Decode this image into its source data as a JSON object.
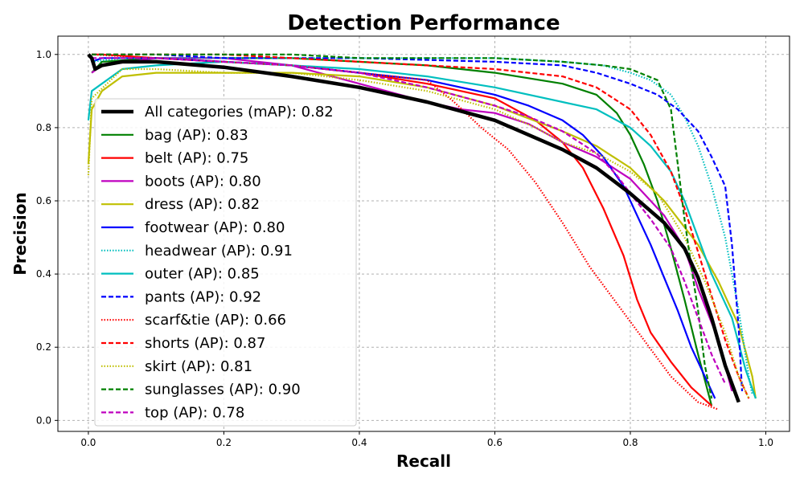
{
  "chart_data": {
    "type": "line",
    "title": "Detection Performance",
    "xlabel": "Recall",
    "ylabel": "Precision",
    "xlim": [
      -0.045,
      1.035
    ],
    "ylim": [
      -0.03,
      1.05
    ],
    "xticks": [
      0.0,
      0.2,
      0.4,
      0.6,
      0.8,
      1.0
    ],
    "xtick_labels": [
      "0.0",
      "0.2",
      "0.4",
      "0.6",
      "0.8",
      "1.0"
    ],
    "yticks": [
      0.0,
      0.2,
      0.4,
      0.6,
      0.8,
      1.0
    ],
    "ytick_labels": [
      "0.0",
      "0.2",
      "0.4",
      "0.6",
      "0.8",
      "1.0"
    ],
    "grid": true,
    "legend_position": "left",
    "series": [
      {
        "name": "All categories",
        "label": "All categories (mAP): 0.82",
        "color": "#000000",
        "style": "solid",
        "width": "thick",
        "x": [
          0.0,
          0.005,
          0.01,
          0.02,
          0.05,
          0.1,
          0.2,
          0.3,
          0.4,
          0.5,
          0.6,
          0.7,
          0.75,
          0.8,
          0.85,
          0.88,
          0.9,
          0.92,
          0.94,
          0.96
        ],
        "y": [
          1.0,
          0.99,
          0.96,
          0.97,
          0.98,
          0.98,
          0.965,
          0.94,
          0.91,
          0.87,
          0.82,
          0.74,
          0.69,
          0.62,
          0.54,
          0.47,
          0.39,
          0.28,
          0.15,
          0.05
        ]
      },
      {
        "name": "bag",
        "label": "bag (AP): 0.83",
        "color": "#008000",
        "style": "solid",
        "width": "normal",
        "x": [
          0.005,
          0.02,
          0.1,
          0.2,
          0.3,
          0.4,
          0.5,
          0.6,
          0.7,
          0.75,
          0.78,
          0.8,
          0.82,
          0.84,
          0.86,
          0.88,
          0.9,
          0.92
        ],
        "y": [
          0.95,
          0.98,
          0.99,
          0.99,
          0.99,
          0.98,
          0.97,
          0.95,
          0.92,
          0.89,
          0.84,
          0.78,
          0.7,
          0.6,
          0.47,
          0.33,
          0.18,
          0.04
        ]
      },
      {
        "name": "belt",
        "label": "belt (AP): 0.75",
        "color": "#ff0000",
        "style": "solid",
        "width": "normal",
        "x": [
          0.005,
          0.02,
          0.1,
          0.2,
          0.3,
          0.4,
          0.5,
          0.6,
          0.66,
          0.7,
          0.73,
          0.76,
          0.79,
          0.81,
          0.83,
          0.86,
          0.89,
          0.92
        ],
        "y": [
          1.0,
          1.0,
          0.99,
          0.98,
          0.97,
          0.95,
          0.92,
          0.88,
          0.82,
          0.76,
          0.69,
          0.58,
          0.45,
          0.33,
          0.24,
          0.16,
          0.09,
          0.04
        ]
      },
      {
        "name": "boots",
        "label": "boots (AP): 0.80",
        "color": "#bf00bf",
        "style": "solid",
        "width": "normal",
        "x": [
          0.005,
          0.02,
          0.1,
          0.2,
          0.3,
          0.4,
          0.5,
          0.55,
          0.6,
          0.65,
          0.7,
          0.75,
          0.8,
          0.85,
          0.88,
          0.9,
          0.93,
          0.95
        ],
        "y": [
          0.95,
          0.97,
          0.99,
          0.99,
          0.97,
          0.92,
          0.87,
          0.85,
          0.84,
          0.81,
          0.76,
          0.72,
          0.66,
          0.56,
          0.47,
          0.36,
          0.22,
          0.08
        ]
      },
      {
        "name": "dress",
        "label": "dress (AP): 0.82",
        "color": "#bfbf00",
        "style": "solid",
        "width": "normal",
        "x": [
          0.0,
          0.005,
          0.02,
          0.05,
          0.1,
          0.2,
          0.3,
          0.4,
          0.5,
          0.6,
          0.7,
          0.75,
          0.8,
          0.85,
          0.9,
          0.93,
          0.96,
          0.98,
          0.985
        ],
        "y": [
          0.7,
          0.85,
          0.9,
          0.94,
          0.95,
          0.95,
          0.95,
          0.94,
          0.91,
          0.86,
          0.79,
          0.75,
          0.69,
          0.6,
          0.48,
          0.38,
          0.26,
          0.12,
          0.06
        ]
      },
      {
        "name": "footwear",
        "label": "footwear (AP): 0.80",
        "color": "#0000ff",
        "style": "solid",
        "width": "normal",
        "x": [
          0.005,
          0.02,
          0.1,
          0.2,
          0.3,
          0.4,
          0.5,
          0.6,
          0.65,
          0.7,
          0.73,
          0.76,
          0.79,
          0.81,
          0.83,
          0.85,
          0.87,
          0.89,
          0.91,
          0.925
        ],
        "y": [
          0.98,
          0.99,
          0.99,
          0.98,
          0.97,
          0.95,
          0.93,
          0.89,
          0.86,
          0.82,
          0.78,
          0.72,
          0.64,
          0.56,
          0.48,
          0.39,
          0.3,
          0.2,
          0.12,
          0.06
        ]
      },
      {
        "name": "headwear",
        "label": "headwear (AP): 0.91",
        "color": "#00bfbf",
        "style": "dotted",
        "width": "normal",
        "x": [
          0.005,
          0.05,
          0.2,
          0.4,
          0.6,
          0.7,
          0.76,
          0.8,
          0.83,
          0.86,
          0.88,
          0.9,
          0.92,
          0.94,
          0.96,
          0.975,
          0.98
        ],
        "y": [
          0.98,
          0.99,
          0.99,
          0.99,
          0.99,
          0.98,
          0.97,
          0.95,
          0.93,
          0.89,
          0.83,
          0.75,
          0.64,
          0.5,
          0.3,
          0.12,
          0.07
        ]
      },
      {
        "name": "outer",
        "label": "outer (AP): 0.85",
        "color": "#00bfbf",
        "style": "solid",
        "width": "normal",
        "x": [
          0.0,
          0.005,
          0.05,
          0.1,
          0.2,
          0.3,
          0.4,
          0.5,
          0.6,
          0.7,
          0.75,
          0.8,
          0.83,
          0.86,
          0.88,
          0.9,
          0.92,
          0.95,
          0.97,
          0.985
        ],
        "y": [
          0.82,
          0.9,
          0.96,
          0.97,
          0.98,
          0.97,
          0.96,
          0.94,
          0.91,
          0.87,
          0.85,
          0.8,
          0.75,
          0.68,
          0.6,
          0.5,
          0.4,
          0.28,
          0.14,
          0.06
        ]
      },
      {
        "name": "pants",
        "label": "pants (AP): 0.92",
        "color": "#0000ff",
        "style": "dashed",
        "width": "normal",
        "x": [
          0.005,
          0.1,
          0.2,
          0.4,
          0.6,
          0.7,
          0.75,
          0.8,
          0.84,
          0.87,
          0.9,
          0.92,
          0.94,
          0.95,
          0.96,
          0.965
        ],
        "y": [
          1.0,
          1.0,
          0.99,
          0.99,
          0.98,
          0.97,
          0.95,
          0.92,
          0.89,
          0.85,
          0.79,
          0.72,
          0.64,
          0.48,
          0.25,
          0.08
        ]
      },
      {
        "name": "scarf&tie",
        "label": "scarf&tie (AP): 0.66",
        "color": "#ff0000",
        "style": "dotted",
        "width": "normal",
        "x": [
          0.005,
          0.1,
          0.2,
          0.3,
          0.4,
          0.5,
          0.54,
          0.58,
          0.62,
          0.66,
          0.7,
          0.74,
          0.78,
          0.82,
          0.86,
          0.9,
          0.93
        ],
        "y": [
          1.0,
          0.99,
          0.98,
          0.97,
          0.95,
          0.93,
          0.87,
          0.8,
          0.74,
          0.65,
          0.54,
          0.42,
          0.32,
          0.22,
          0.12,
          0.05,
          0.03
        ]
      },
      {
        "name": "shorts",
        "label": "shorts (AP): 0.87",
        "color": "#ff0000",
        "style": "dashed",
        "width": "normal",
        "x": [
          0.005,
          0.1,
          0.2,
          0.3,
          0.4,
          0.5,
          0.6,
          0.7,
          0.75,
          0.8,
          0.83,
          0.86,
          0.88,
          0.9,
          0.92,
          0.94,
          0.96,
          0.975
        ],
        "y": [
          1.0,
          1.0,
          1.0,
          0.99,
          0.98,
          0.97,
          0.96,
          0.94,
          0.91,
          0.85,
          0.78,
          0.68,
          0.58,
          0.46,
          0.34,
          0.22,
          0.12,
          0.06
        ]
      },
      {
        "name": "skirt",
        "label": "skirt (AP): 0.81",
        "color": "#bfbf00",
        "style": "dotted",
        "width": "normal",
        "x": [
          0.0,
          0.005,
          0.05,
          0.1,
          0.2,
          0.3,
          0.4,
          0.5,
          0.6,
          0.66,
          0.7,
          0.75,
          0.8,
          0.84,
          0.88,
          0.91,
          0.94,
          0.96,
          0.975
        ],
        "y": [
          0.67,
          0.88,
          0.96,
          0.96,
          0.95,
          0.95,
          0.93,
          0.9,
          0.85,
          0.8,
          0.76,
          0.73,
          0.68,
          0.62,
          0.5,
          0.38,
          0.24,
          0.12,
          0.06
        ]
      },
      {
        "name": "sunglasses",
        "label": "sunglasses (AP): 0.90",
        "color": "#008000",
        "style": "dashed",
        "width": "normal",
        "x": [
          0.005,
          0.1,
          0.2,
          0.3,
          0.4,
          0.5,
          0.6,
          0.7,
          0.76,
          0.8,
          0.84,
          0.86,
          0.87,
          0.88,
          0.89,
          0.9,
          0.91,
          0.92
        ],
        "y": [
          1.0,
          1.0,
          1.0,
          1.0,
          0.99,
          0.99,
          0.99,
          0.98,
          0.97,
          0.96,
          0.93,
          0.85,
          0.7,
          0.55,
          0.42,
          0.3,
          0.15,
          0.06
        ]
      },
      {
        "name": "top",
        "label": "top (AP): 0.78",
        "color": "#bf00bf",
        "style": "dashed",
        "width": "normal",
        "x": [
          0.005,
          0.1,
          0.2,
          0.3,
          0.4,
          0.5,
          0.6,
          0.65,
          0.7,
          0.75,
          0.78,
          0.8,
          0.83,
          0.86,
          0.88,
          0.9,
          0.92,
          0.94
        ],
        "y": [
          0.99,
          0.99,
          0.98,
          0.97,
          0.95,
          0.91,
          0.86,
          0.83,
          0.79,
          0.73,
          0.67,
          0.62,
          0.55,
          0.47,
          0.38,
          0.28,
          0.18,
          0.1
        ]
      }
    ]
  }
}
